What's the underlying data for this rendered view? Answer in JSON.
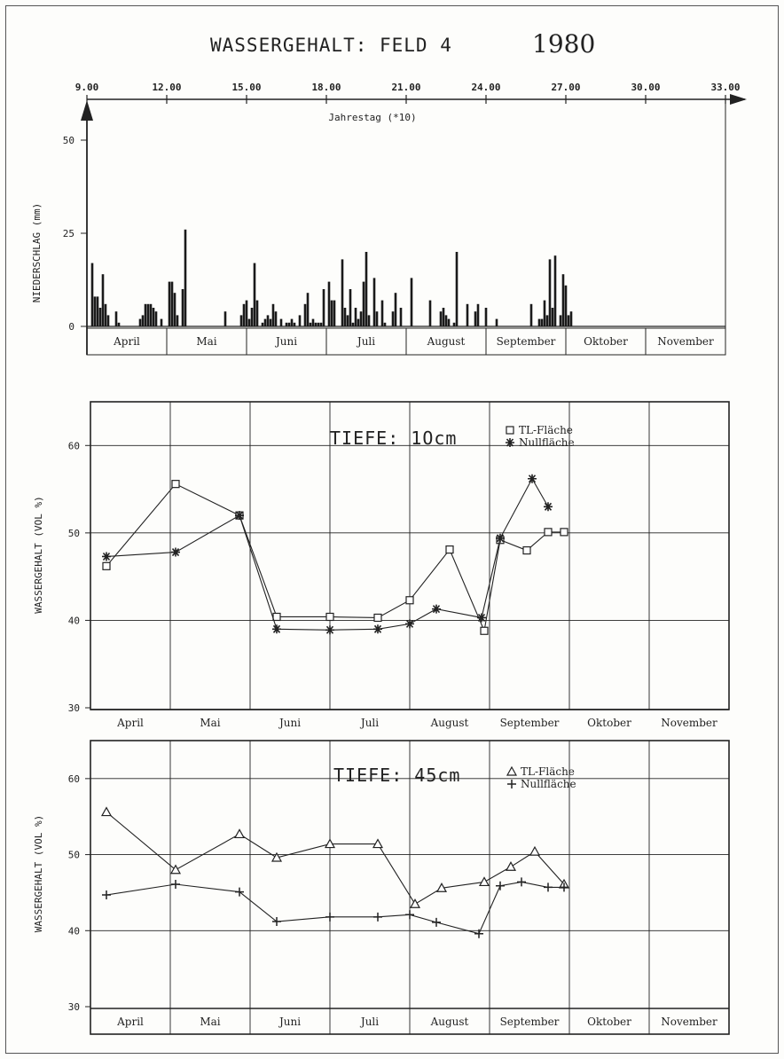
{
  "title": {
    "main": "WASSERGEHALT: FELD 4",
    "year": "1980"
  },
  "chart_data": [
    {
      "type": "bar",
      "xlabel": "Jahrestag (*10)",
      "ylabel": "NIEDERSCHLAG (mm)",
      "x_ticks": [
        "9.00",
        "12.00",
        "15.00",
        "18.00",
        "21.00",
        "24.00",
        "27.00",
        "30.00",
        "33.00"
      ],
      "xlim": [
        90,
        330
      ],
      "ylim": [
        0,
        65
      ],
      "y_ticks": [
        "0",
        "25",
        "50"
      ],
      "months": [
        "April",
        "Mai",
        "Juni",
        "Juli",
        "August",
        "September",
        "Oktober",
        "November"
      ],
      "x": [
        92,
        93,
        94,
        95,
        96,
        97,
        98,
        101,
        102,
        110,
        111,
        112,
        113,
        114,
        115,
        116,
        118,
        121,
        122,
        123,
        124,
        126,
        127,
        142,
        148,
        149,
        150,
        151,
        152,
        153,
        154,
        156,
        157,
        158,
        159,
        160,
        161,
        163,
        165,
        166,
        167,
        168,
        170,
        172,
        173,
        174,
        175,
        176,
        177,
        178,
        179,
        181,
        182,
        183,
        186,
        187,
        188,
        189,
        190,
        191,
        192,
        193,
        194,
        195,
        196,
        198,
        199,
        201,
        202,
        205,
        206,
        208,
        212,
        219,
        223,
        224,
        225,
        226,
        228,
        229,
        233,
        236,
        237,
        240,
        244,
        257,
        260,
        261,
        262,
        263,
        264,
        265,
        266,
        268,
        269,
        270,
        271,
        272
      ],
      "values": [
        17,
        8,
        8,
        5,
        14,
        6,
        3,
        4,
        1,
        2,
        3,
        6,
        6,
        6,
        5,
        4,
        2,
        12,
        12,
        9,
        3,
        10,
        26,
        4,
        3,
        6,
        7,
        2,
        5,
        17,
        7,
        1,
        2,
        3,
        2,
        6,
        4,
        2,
        1,
        1,
        2,
        1,
        3,
        6,
        9,
        1,
        2,
        1,
        1,
        1,
        10,
        12,
        7,
        7,
        18,
        5,
        3,
        10,
        1,
        5,
        2,
        4,
        12,
        20,
        3,
        13,
        4,
        7,
        1,
        4,
        9,
        5,
        13,
        7,
        4,
        5,
        3,
        2,
        1,
        20,
        6,
        4,
        6,
        5,
        2,
        6,
        2,
        2,
        7,
        3,
        18,
        5,
        19,
        3,
        14,
        11,
        3,
        4
      ]
    },
    {
      "type": "line",
      "panel_title": "TIEFE: 1Ocm",
      "ylabel": "WASSERGEHALT (VOL %)",
      "ylim": [
        30,
        65
      ],
      "y_ticks": [
        "30",
        "40",
        "50",
        "60"
      ],
      "months": [
        "April",
        "Mai",
        "Juni",
        "Juli",
        "August",
        "September",
        "Oktober",
        "November"
      ],
      "series": [
        {
          "name": "TL-Fläche",
          "marker": "square",
          "x": [
            96,
            122,
            146,
            160,
            180,
            198,
            210,
            225,
            238,
            244,
            254,
            262,
            268
          ],
          "y": [
            46.2,
            55.6,
            52.0,
            40.4,
            40.4,
            40.3,
            42.3,
            48.1,
            38.8,
            49.2,
            48.0,
            50.1,
            50.1
          ]
        },
        {
          "name": "Nullfläche",
          "marker": "asterisk",
          "x": [
            96,
            122,
            146,
            160,
            180,
            198,
            210,
            220,
            237,
            244,
            256,
            262
          ],
          "y": [
            47.3,
            47.8,
            52.0,
            39.0,
            38.9,
            39.0,
            39.6,
            41.3,
            40.3,
            49.4,
            56.2,
            53.0
          ]
        }
      ]
    },
    {
      "type": "line",
      "panel_title": "TIEFE: 45cm",
      "ylabel": "WASSERGEHALT (VOL %)",
      "ylim": [
        30,
        65
      ],
      "y_ticks": [
        "30",
        "40",
        "50",
        "60"
      ],
      "months": [
        "April",
        "Mai",
        "Juni",
        "Juli",
        "August",
        "September",
        "Oktober",
        "November"
      ],
      "series": [
        {
          "name": "TL-Fläche",
          "marker": "triangle",
          "x": [
            96,
            122,
            146,
            160,
            180,
            198,
            212,
            222,
            238,
            248,
            257,
            268
          ],
          "y": [
            55.6,
            48.0,
            52.7,
            49.6,
            51.4,
            51.4,
            43.5,
            45.6,
            46.4,
            48.4,
            50.4,
            46.1
          ]
        },
        {
          "name": "Nullfläche",
          "marker": "plus",
          "x": [
            96,
            122,
            146,
            160,
            180,
            198,
            210,
            220,
            236,
            244,
            252,
            262,
            268
          ],
          "y": [
            44.7,
            46.1,
            45.1,
            41.2,
            41.8,
            41.8,
            42.1,
            41.1,
            39.6,
            45.9,
            46.4,
            45.7,
            45.7
          ]
        }
      ]
    }
  ]
}
